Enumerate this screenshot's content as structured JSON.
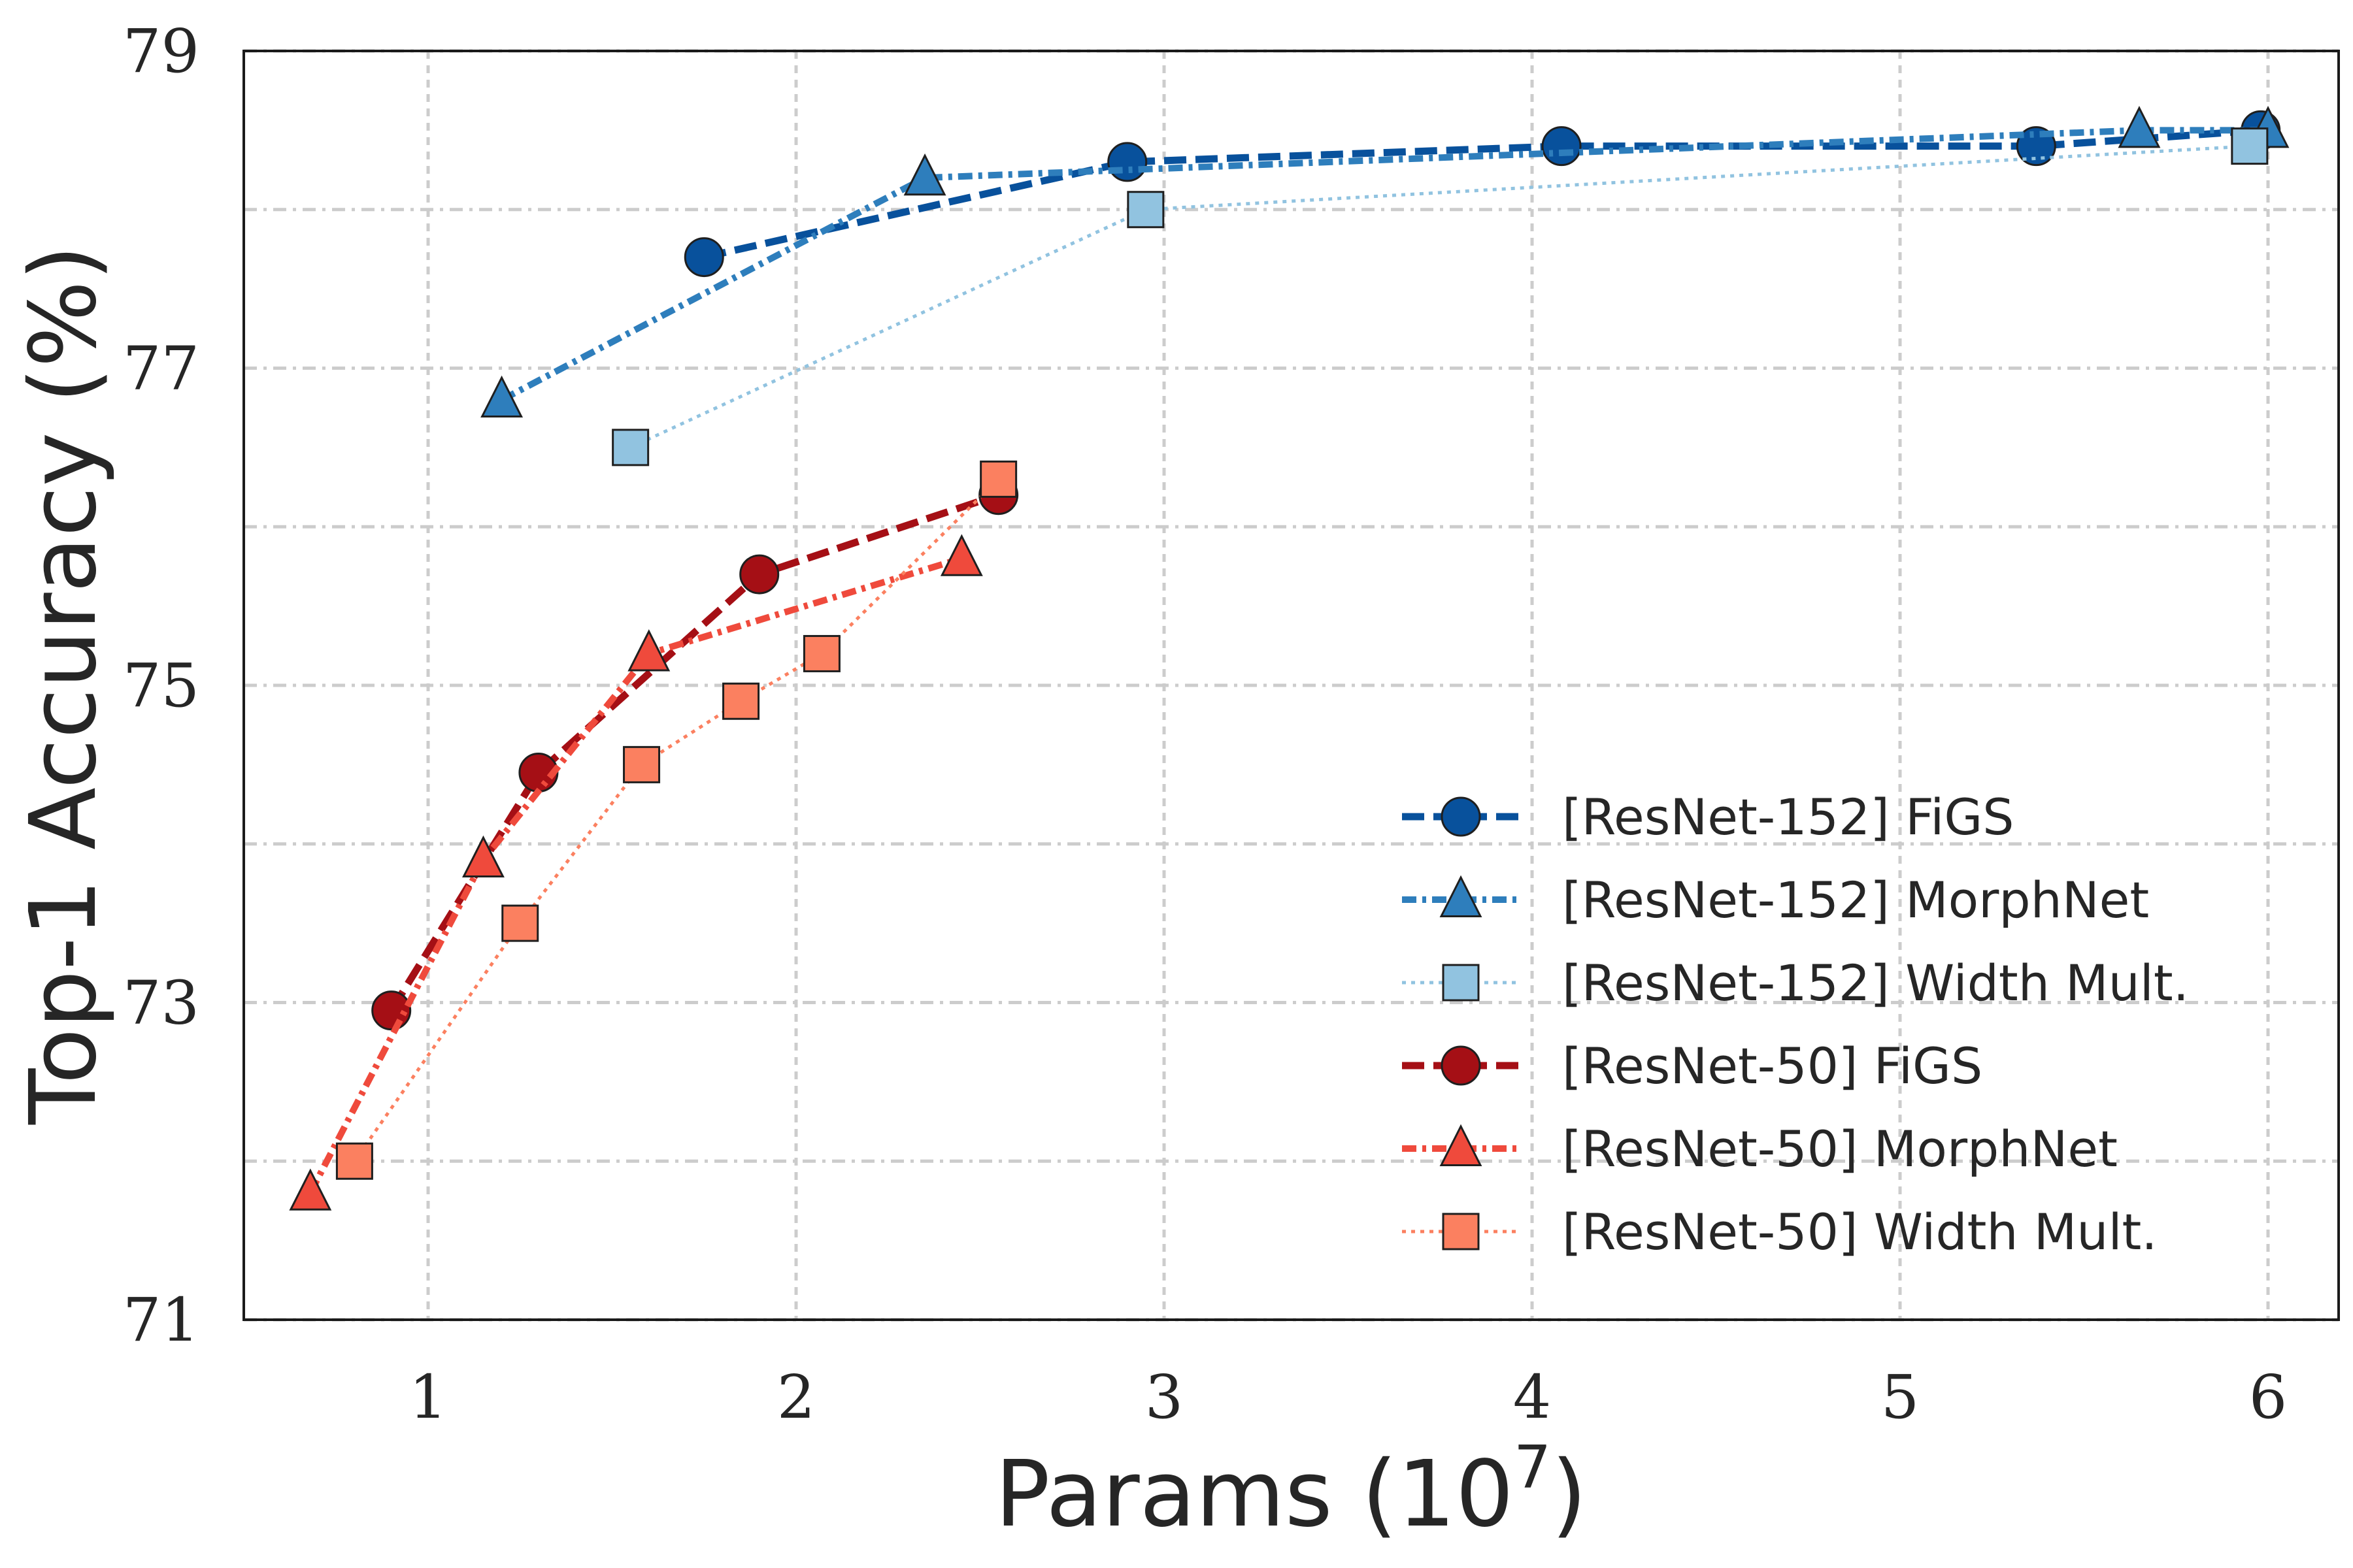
{
  "chart_data": {
    "type": "line",
    "xlabel": "Params (10",
    "xlabel_exponent": "7",
    "xlabel_close": ")",
    "ylabel": "Top-1 Accuracy (%)",
    "xlim": [
      0.5,
      6.2
    ],
    "ylim": [
      71,
      79
    ],
    "xticks": [
      1,
      2,
      3,
      4,
      5,
      6
    ],
    "xtick_labels": [
      "1",
      "2",
      "3",
      "4",
      "5",
      "6"
    ],
    "yticks": [
      71,
      73,
      75,
      77,
      79
    ],
    "ytick_labels": [
      "71",
      "73",
      "75",
      "77",
      "79"
    ],
    "ygrid": [
      71,
      72,
      73,
      74,
      75,
      76,
      77,
      78,
      79
    ],
    "grid": true,
    "legend_position": "lower-right",
    "series": [
      {
        "name": "[ResNet-152] FiGS",
        "color": "#08519c",
        "marker": "circle",
        "dash": "dashed",
        "x": [
          1.75,
          2.9,
          4.08,
          5.37,
          5.98
        ],
        "y": [
          77.7,
          78.3,
          78.4,
          78.4,
          78.5
        ]
      },
      {
        "name": "[ResNet-152] MorphNet",
        "color": "#2e7ebc",
        "marker": "triangle",
        "dash": "dashdot",
        "x": [
          1.2,
          2.35,
          5.65,
          6.0
        ],
        "y": [
          76.8,
          78.2,
          78.5,
          78.5
        ]
      },
      {
        "name": "[ResNet-152] Width Mult.",
        "color": "#91c3e0",
        "marker": "square",
        "dash": "dotted",
        "x": [
          1.55,
          2.95,
          5.95
        ],
        "y": [
          76.5,
          78.0,
          78.4
        ]
      },
      {
        "name": "[ResNet-50] FiGS",
        "color": "#a50f15",
        "marker": "circle",
        "dash": "dashed",
        "x": [
          0.9,
          1.3,
          1.9,
          2.55
        ],
        "y": [
          72.95,
          74.45,
          75.7,
          76.2
        ]
      },
      {
        "name": "[ResNet-50] MorphNet",
        "color": "#ef4a3c",
        "marker": "triangle",
        "dash": "dashdot",
        "x": [
          0.68,
          1.15,
          1.6,
          2.45
        ],
        "y": [
          71.8,
          73.9,
          75.2,
          75.8
        ]
      },
      {
        "name": "[ResNet-50] Width Mult.",
        "color": "#fb8060",
        "marker": "square",
        "dash": "dotted",
        "x": [
          0.8,
          1.25,
          1.58,
          1.85,
          2.07,
          2.55
        ],
        "y": [
          72.0,
          73.5,
          74.5,
          74.9,
          75.2,
          76.3
        ]
      }
    ]
  }
}
